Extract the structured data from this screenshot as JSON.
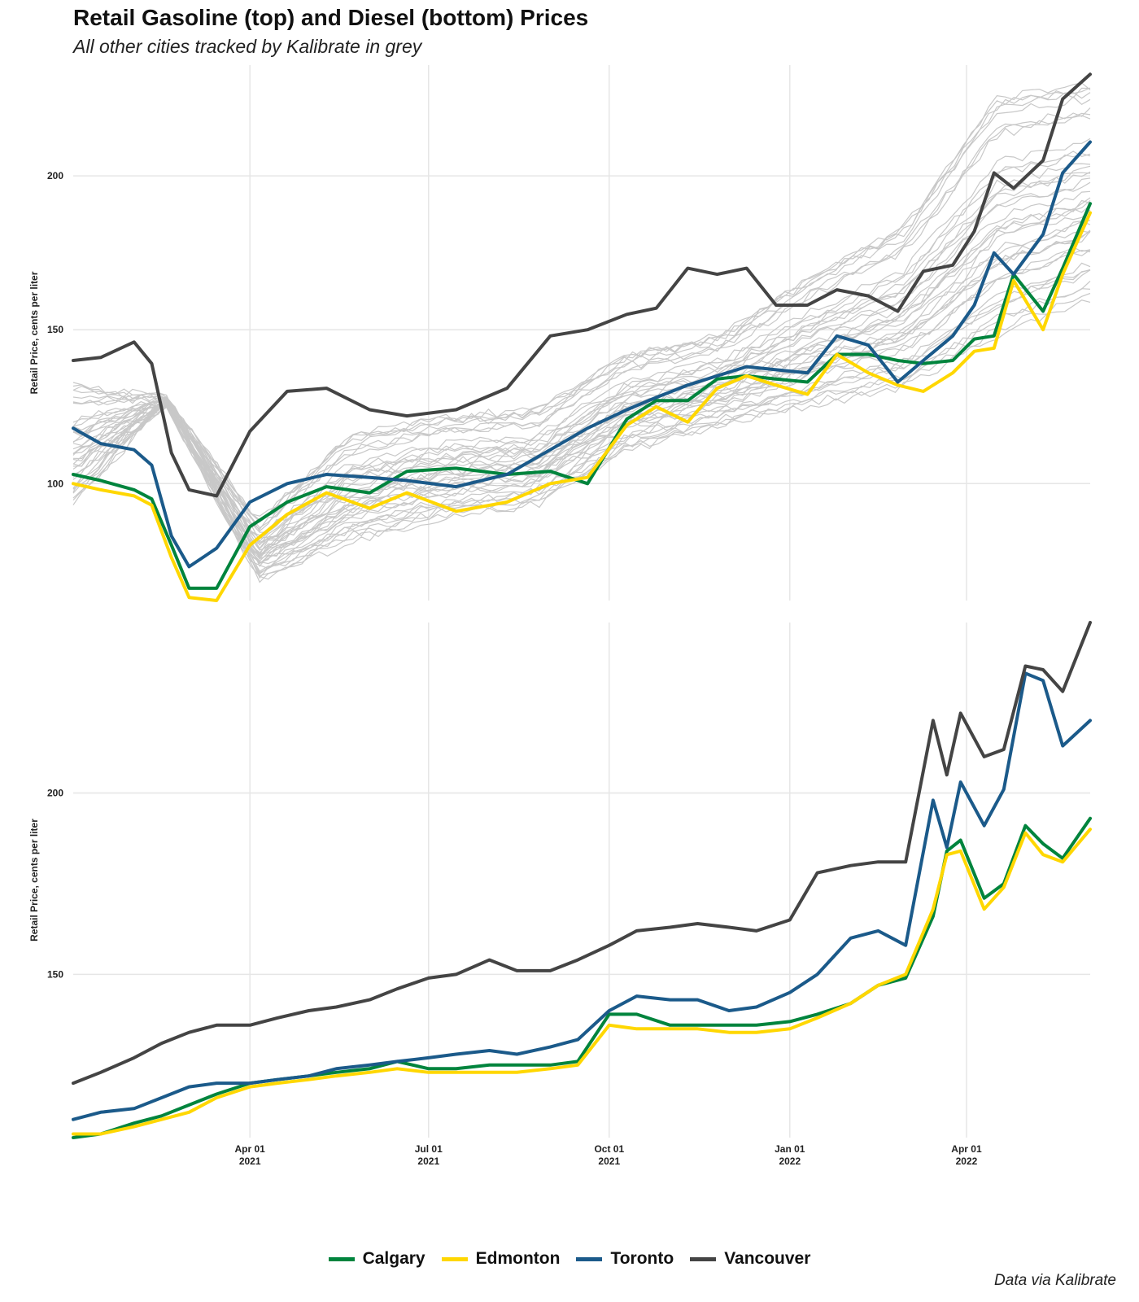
{
  "title": "Retail Gasoline (top) and Diesel (bottom) Prices",
  "subtitle": "All other cities tracked by Kalibrate in grey",
  "caption": "Data via Kalibrate",
  "colors": {
    "Calgary": "#00843d",
    "Edmonton": "#ffd700",
    "Toronto": "#1b5a8a",
    "Vancouver": "#444444",
    "other_cities": "#c8c8c8",
    "grid": "#e6e6e6"
  },
  "legend": [
    {
      "name": "Calgary",
      "label": "Calgary"
    },
    {
      "name": "Edmonton",
      "label": "Edmonton"
    },
    {
      "name": "Toronto",
      "label": "Toronto"
    },
    {
      "name": "Vancouver",
      "label": "Vancouver"
    }
  ],
  "chart_data": [
    {
      "type": "line",
      "panel": "gasoline",
      "ylabel": "Retail Price, cents per liter",
      "yticks": [
        100,
        150,
        200
      ],
      "ylim": [
        62,
        236
      ],
      "xlim": [
        "2021-01-01",
        "2022-06-03"
      ],
      "xticks": [
        "2021-04-01",
        "2021-07-01",
        "2021-10-01",
        "2022-01-01",
        "2022-04-01"
      ],
      "xtick_labels": [],
      "grid": true,
      "background_series": {
        "name": "Other cities",
        "color": "#c8c8c8",
        "count": 40,
        "value_range_min": [
          92,
          126,
          68,
          80,
          88,
          92,
          110,
          118,
          124,
          130,
          146,
          158
        ],
        "value_range_max": [
          132,
          128,
          88,
          116,
          122,
          124,
          142,
          148,
          168,
          184,
          226,
          230
        ]
      },
      "series": [
        {
          "name": "Calgary",
          "x": [
            "2021-01-01",
            "2021-01-15",
            "2021-02-01",
            "2021-02-10",
            "2021-02-20",
            "2021-03-01",
            "2021-03-15",
            "2021-04-01",
            "2021-04-20",
            "2021-05-10",
            "2021-06-01",
            "2021-06-20",
            "2021-07-15",
            "2021-08-10",
            "2021-09-01",
            "2021-09-20",
            "2021-10-10",
            "2021-10-25",
            "2021-11-10",
            "2021-11-25",
            "2021-12-10",
            "2021-12-25",
            "2022-01-10",
            "2022-01-25",
            "2022-02-10",
            "2022-02-25",
            "2022-03-10",
            "2022-03-25",
            "2022-04-05",
            "2022-04-15",
            "2022-04-25",
            "2022-05-10",
            "2022-05-20",
            "2022-06-03"
          ],
          "values": [
            103,
            101,
            98,
            95,
            80,
            66,
            66,
            86,
            94,
            99,
            97,
            104,
            105,
            103,
            104,
            100,
            121,
            127,
            127,
            134,
            135,
            134,
            133,
            142,
            142,
            140,
            139,
            140,
            147,
            148,
            168,
            156,
            170,
            191
          ]
        },
        {
          "name": "Edmonton",
          "x": [
            "2021-01-01",
            "2021-01-15",
            "2021-02-01",
            "2021-02-10",
            "2021-02-20",
            "2021-03-01",
            "2021-03-15",
            "2021-04-01",
            "2021-04-20",
            "2021-05-10",
            "2021-06-01",
            "2021-06-20",
            "2021-07-15",
            "2021-08-10",
            "2021-09-01",
            "2021-09-20",
            "2021-10-10",
            "2021-10-25",
            "2021-11-10",
            "2021-11-25",
            "2021-12-10",
            "2021-12-25",
            "2022-01-10",
            "2022-01-25",
            "2022-02-10",
            "2022-02-25",
            "2022-03-10",
            "2022-03-25",
            "2022-04-05",
            "2022-04-15",
            "2022-04-25",
            "2022-05-10",
            "2022-05-20",
            "2022-06-03"
          ],
          "values": [
            100,
            98,
            96,
            93,
            76,
            63,
            62,
            80,
            90,
            97,
            92,
            97,
            91,
            94,
            100,
            102,
            119,
            125,
            120,
            131,
            135,
            132,
            129,
            142,
            136,
            132,
            130,
            136,
            143,
            144,
            166,
            150,
            168,
            188
          ]
        },
        {
          "name": "Toronto",
          "x": [
            "2021-01-01",
            "2021-01-15",
            "2021-02-01",
            "2021-02-10",
            "2021-02-20",
            "2021-03-01",
            "2021-03-15",
            "2021-04-01",
            "2021-04-20",
            "2021-05-10",
            "2021-06-01",
            "2021-06-20",
            "2021-07-15",
            "2021-08-10",
            "2021-09-01",
            "2021-09-20",
            "2021-10-10",
            "2021-10-25",
            "2021-11-10",
            "2021-11-25",
            "2021-12-10",
            "2021-12-25",
            "2022-01-10",
            "2022-01-25",
            "2022-02-10",
            "2022-02-25",
            "2022-03-10",
            "2022-03-25",
            "2022-04-05",
            "2022-04-15",
            "2022-04-25",
            "2022-05-10",
            "2022-05-20",
            "2022-06-03"
          ],
          "values": [
            118,
            113,
            111,
            106,
            83,
            73,
            79,
            94,
            100,
            103,
            102,
            101,
            99,
            103,
            111,
            118,
            124,
            128,
            132,
            135,
            138,
            137,
            136,
            148,
            145,
            133,
            140,
            148,
            158,
            175,
            168,
            181,
            201,
            211
          ]
        },
        {
          "name": "Vancouver",
          "x": [
            "2021-01-01",
            "2021-01-15",
            "2021-02-01",
            "2021-02-10",
            "2021-02-20",
            "2021-03-01",
            "2021-03-15",
            "2021-04-01",
            "2021-04-20",
            "2021-05-10",
            "2021-06-01",
            "2021-06-20",
            "2021-07-15",
            "2021-08-10",
            "2021-09-01",
            "2021-09-20",
            "2021-10-10",
            "2021-10-25",
            "2021-11-10",
            "2021-11-25",
            "2021-12-10",
            "2021-12-25",
            "2022-01-10",
            "2022-01-25",
            "2022-02-10",
            "2022-02-25",
            "2022-03-10",
            "2022-03-25",
            "2022-04-05",
            "2022-04-15",
            "2022-04-25",
            "2022-05-10",
            "2022-05-20",
            "2022-06-03"
          ],
          "values": [
            140,
            141,
            146,
            139,
            110,
            98,
            96,
            117,
            130,
            131,
            124,
            122,
            124,
            131,
            148,
            150,
            155,
            157,
            170,
            168,
            170,
            158,
            158,
            163,
            161,
            156,
            169,
            171,
            182,
            201,
            196,
            205,
            225,
            233
          ]
        }
      ]
    },
    {
      "type": "line",
      "panel": "diesel",
      "ylabel": "Retail Price, cents per liter",
      "yticks": [
        150,
        200
      ],
      "ylim": [
        105,
        247
      ],
      "xlim": [
        "2021-01-01",
        "2022-06-03"
      ],
      "xticks": [
        "2021-04-01",
        "2021-07-01",
        "2021-10-01",
        "2022-01-01",
        "2022-04-01"
      ],
      "xtick_labels": [
        [
          "Apr 01",
          "2021"
        ],
        [
          "Jul 01",
          "2021"
        ],
        [
          "Oct 01",
          "2021"
        ],
        [
          "Jan 01",
          "2022"
        ],
        [
          "Apr 01",
          "2022"
        ]
      ],
      "grid": true,
      "series": [
        {
          "name": "Calgary",
          "x": [
            "2021-01-01",
            "2021-01-15",
            "2021-02-01",
            "2021-02-15",
            "2021-03-01",
            "2021-03-15",
            "2021-04-01",
            "2021-04-15",
            "2021-05-01",
            "2021-05-15",
            "2021-06-01",
            "2021-06-15",
            "2021-07-01",
            "2021-07-15",
            "2021-08-01",
            "2021-08-15",
            "2021-09-01",
            "2021-09-15",
            "2021-10-01",
            "2021-10-15",
            "2021-11-01",
            "2021-11-15",
            "2021-12-01",
            "2021-12-15",
            "2022-01-01",
            "2022-01-15",
            "2022-02-01",
            "2022-02-15",
            "2022-03-01",
            "2022-03-15",
            "2022-03-22",
            "2022-03-29",
            "2022-04-10",
            "2022-04-20",
            "2022-05-01",
            "2022-05-10",
            "2022-05-20",
            "2022-06-03"
          ],
          "values": [
            105,
            106,
            109,
            111,
            114,
            117,
            120,
            121,
            122,
            123,
            124,
            126,
            124,
            124,
            125,
            125,
            125,
            126,
            139,
            139,
            136,
            136,
            136,
            136,
            137,
            139,
            142,
            147,
            149,
            166,
            184,
            187,
            171,
            175,
            191,
            186,
            182,
            193
          ]
        },
        {
          "name": "Edmonton",
          "x": [
            "2021-01-01",
            "2021-01-15",
            "2021-02-01",
            "2021-02-15",
            "2021-03-01",
            "2021-03-15",
            "2021-04-01",
            "2021-04-15",
            "2021-05-01",
            "2021-05-15",
            "2021-06-01",
            "2021-06-15",
            "2021-07-01",
            "2021-07-15",
            "2021-08-01",
            "2021-08-15",
            "2021-09-01",
            "2021-09-15",
            "2021-10-01",
            "2021-10-15",
            "2021-11-01",
            "2021-11-15",
            "2021-12-01",
            "2021-12-15",
            "2022-01-01",
            "2022-01-15",
            "2022-02-01",
            "2022-02-15",
            "2022-03-01",
            "2022-03-15",
            "2022-03-22",
            "2022-03-29",
            "2022-04-10",
            "2022-04-20",
            "2022-05-01",
            "2022-05-10",
            "2022-05-20",
            "2022-06-03"
          ],
          "values": [
            106,
            106,
            108,
            110,
            112,
            116,
            119,
            120,
            121,
            122,
            123,
            124,
            123,
            123,
            123,
            123,
            124,
            125,
            136,
            135,
            135,
            135,
            134,
            134,
            135,
            138,
            142,
            147,
            150,
            168,
            183,
            184,
            168,
            174,
            189,
            183,
            181,
            190
          ]
        },
        {
          "name": "Toronto",
          "x": [
            "2021-01-01",
            "2021-01-15",
            "2021-02-01",
            "2021-02-15",
            "2021-03-01",
            "2021-03-15",
            "2021-04-01",
            "2021-04-15",
            "2021-05-01",
            "2021-05-15",
            "2021-06-01",
            "2021-06-15",
            "2021-07-01",
            "2021-07-15",
            "2021-08-01",
            "2021-08-15",
            "2021-09-01",
            "2021-09-15",
            "2021-10-01",
            "2021-10-15",
            "2021-11-01",
            "2021-11-15",
            "2021-12-01",
            "2021-12-15",
            "2022-01-01",
            "2022-01-15",
            "2022-02-01",
            "2022-02-15",
            "2022-03-01",
            "2022-03-15",
            "2022-03-22",
            "2022-03-29",
            "2022-04-10",
            "2022-04-20",
            "2022-05-01",
            "2022-05-10",
            "2022-05-20",
            "2022-06-03"
          ],
          "values": [
            110,
            112,
            113,
            116,
            119,
            120,
            120,
            121,
            122,
            124,
            125,
            126,
            127,
            128,
            129,
            128,
            130,
            132,
            140,
            144,
            143,
            143,
            140,
            141,
            145,
            150,
            160,
            162,
            158,
            198,
            185,
            203,
            191,
            201,
            233,
            231,
            213,
            220
          ]
        },
        {
          "name": "Vancouver",
          "x": [
            "2021-01-01",
            "2021-01-15",
            "2021-02-01",
            "2021-02-15",
            "2021-03-01",
            "2021-03-15",
            "2021-04-01",
            "2021-04-15",
            "2021-05-01",
            "2021-05-15",
            "2021-06-01",
            "2021-06-15",
            "2021-07-01",
            "2021-07-15",
            "2021-08-01",
            "2021-08-15",
            "2021-09-01",
            "2021-09-15",
            "2021-10-01",
            "2021-10-15",
            "2021-11-01",
            "2021-11-15",
            "2021-12-01",
            "2021-12-15",
            "2022-01-01",
            "2022-01-15",
            "2022-02-01",
            "2022-02-15",
            "2022-03-01",
            "2022-03-15",
            "2022-03-22",
            "2022-03-29",
            "2022-04-10",
            "2022-04-20",
            "2022-05-01",
            "2022-05-10",
            "2022-05-20",
            "2022-06-03"
          ],
          "values": [
            120,
            123,
            127,
            131,
            134,
            136,
            136,
            138,
            140,
            141,
            143,
            146,
            149,
            150,
            154,
            151,
            151,
            154,
            158,
            162,
            163,
            164,
            163,
            162,
            165,
            178,
            180,
            181,
            181,
            220,
            205,
            222,
            210,
            212,
            235,
            234,
            228,
            247
          ]
        }
      ]
    }
  ]
}
